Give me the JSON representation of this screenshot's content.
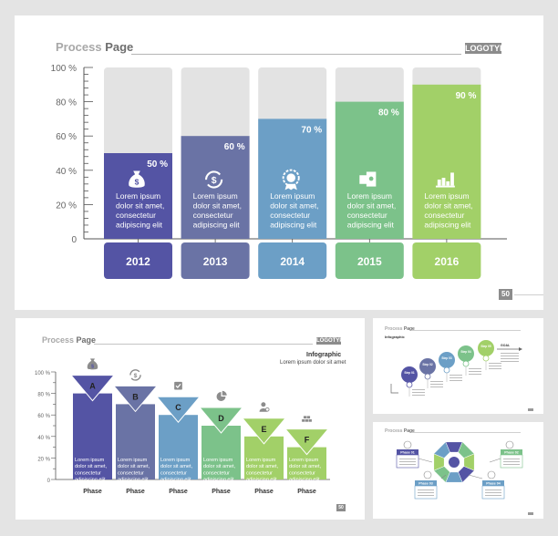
{
  "colors": {
    "bg": "#e4e4e4",
    "slide": "#ffffff",
    "track": "#e3e3e3",
    "palette": [
      "#5454a4",
      "#6a73a5",
      "#6c9fc6",
      "#7cc28a",
      "#a2d068"
    ]
  },
  "main": {
    "title_prefix": "Process ",
    "title_bold": "Page",
    "logotype": "LOGOTYPE",
    "page_number": "50",
    "chart_data": {
      "type": "bar",
      "categories": [
        "2012",
        "2013",
        "2014",
        "2015",
        "2016"
      ],
      "values": [
        50,
        60,
        70,
        80,
        90
      ],
      "value_labels": [
        "50 %",
        "60 %",
        "70 %",
        "80 %",
        "90 %"
      ],
      "ylim": [
        0,
        100
      ],
      "ytick_labels": [
        "100 %",
        "80 %",
        "60 %",
        "40 %",
        "20 %",
        "0"
      ],
      "body_lines": [
        "Lorem ipsum",
        "dolor sit amet,",
        "consectetur",
        "adipiscing elit"
      ],
      "icons": [
        "money-bag-icon",
        "dollar-cycle-icon",
        "award-badge-icon",
        "bill-money-icon",
        "bar-chart-icon"
      ]
    }
  },
  "slide2": {
    "title_prefix": "Process ",
    "title_bold": "Page",
    "logotype": "LOGOTYPE",
    "page_number": "50",
    "infographic_title": "Infographic",
    "infographic_sub": "Lorem ipsum dolor sit amet",
    "chart_data": {
      "type": "bar",
      "categories": [
        "Phase",
        "Phase",
        "Phase",
        "Phase",
        "Phase",
        "Phase"
      ],
      "letters": [
        "A",
        "B",
        "C",
        "D",
        "E",
        "F"
      ],
      "values": [
        80,
        70,
        60,
        50,
        40,
        30
      ],
      "ylim": [
        0,
        100
      ],
      "ytick_labels": [
        "100 %",
        "80 %",
        "60 %",
        "40 %",
        "20 %",
        "0"
      ],
      "body_lines": [
        "Lorem ipsum",
        "dolor sit amet,",
        "consectetur",
        "adipiscing elit"
      ],
      "icons": [
        "money-bag-icon",
        "dollar-cycle-icon",
        "checkbox-icon",
        "pie-chart-icon",
        "person-gear-icon",
        "gold-bars-icon"
      ]
    }
  },
  "slide3": {
    "title_prefix": "Process ",
    "title_bold": "Page",
    "heading": "Infographic",
    "steps": [
      "Step 01",
      "Step 02",
      "Step 03",
      "Step 04",
      "Step 05"
    ],
    "goal": "GOAL"
  },
  "slide4": {
    "title_prefix": "Process ",
    "title_bold": "Page",
    "phases": [
      "Phase 01",
      "Phase 02",
      "Phase 03",
      "Phase 04"
    ]
  }
}
